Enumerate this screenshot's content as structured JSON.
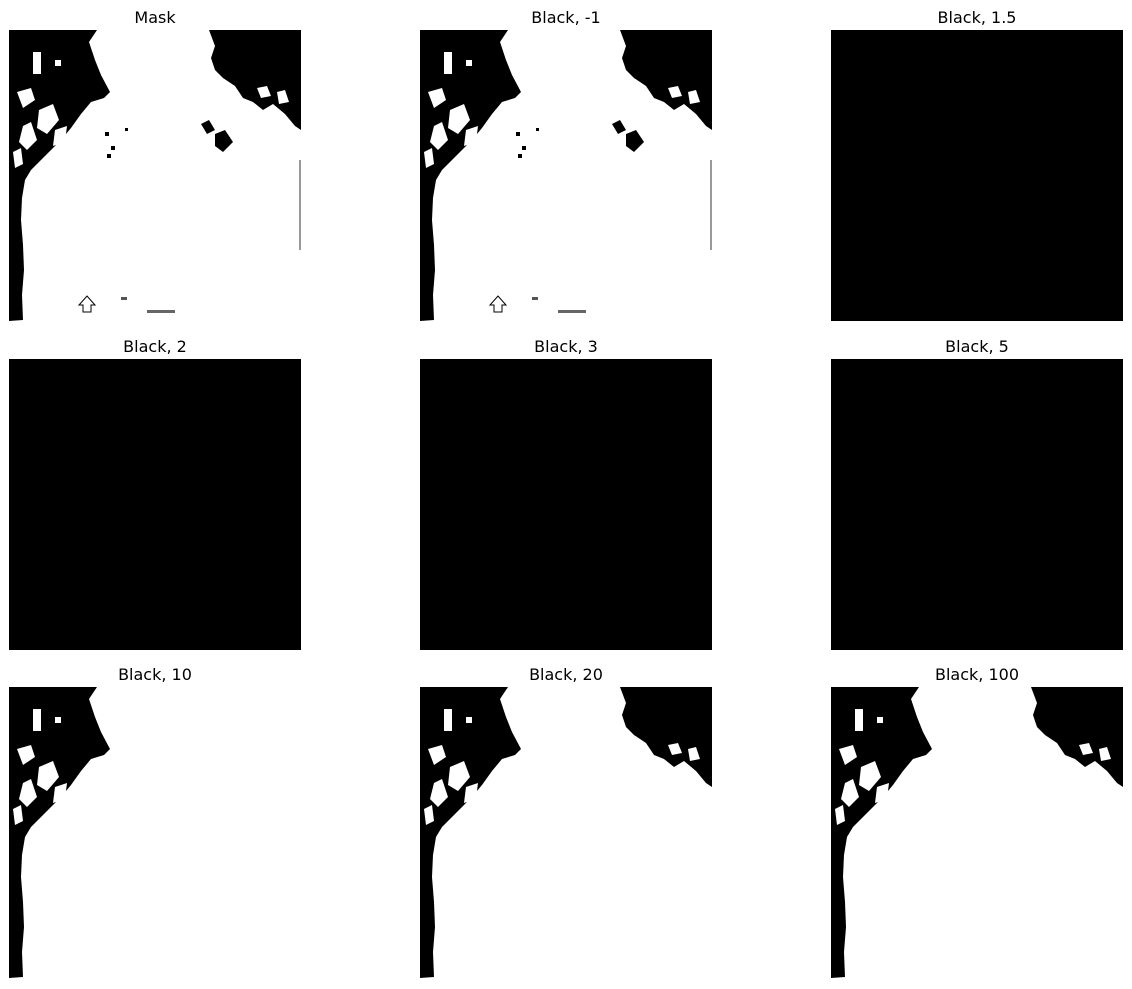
{
  "figure": {
    "panels": [
      {
        "title": "Mask",
        "fill": "mask"
      },
      {
        "title": "Black, -1",
        "fill": "mask"
      },
      {
        "title": "Black, 1.5",
        "fill": "black"
      },
      {
        "title": "Black, 2",
        "fill": "black"
      },
      {
        "title": "Black, 3",
        "fill": "black"
      },
      {
        "title": "Black, 5",
        "fill": "black"
      },
      {
        "title": "Black, 10",
        "fill": "left-only"
      },
      {
        "title": "Black, 20",
        "fill": "full-shape"
      },
      {
        "title": "Black, 100",
        "fill": "full-shape"
      }
    ]
  }
}
